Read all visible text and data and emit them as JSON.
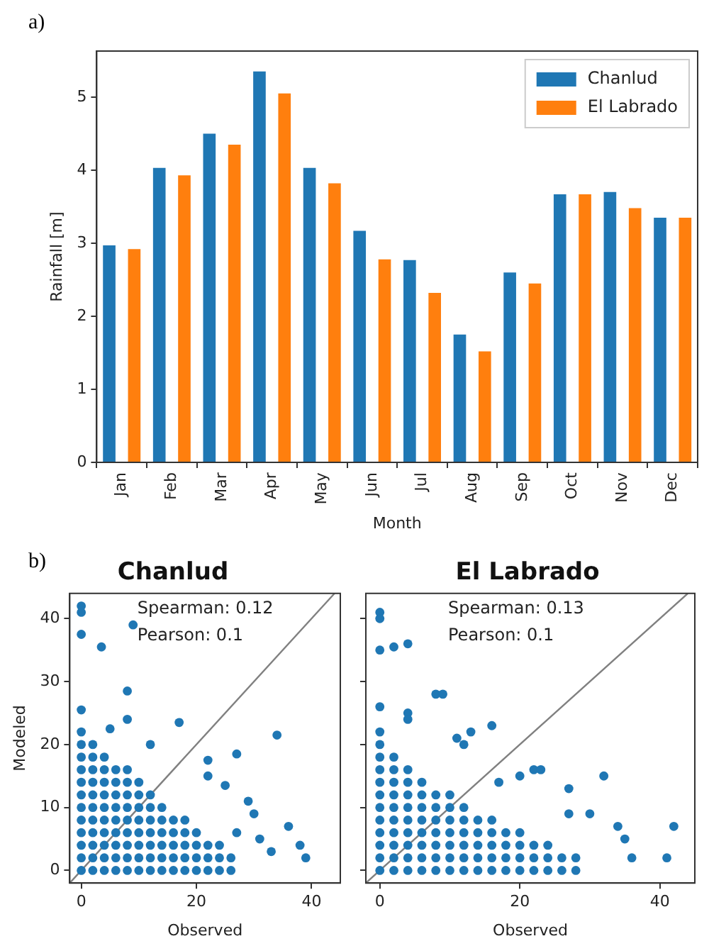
{
  "chart_data": [
    {
      "type": "bar",
      "annotations": [
        "a)"
      ],
      "xlabel": "Month",
      "ylabel": "Rainfall [m]",
      "categories": [
        "Jan",
        "Feb",
        "Mar",
        "Apr",
        "May",
        "Jun",
        "Jul",
        "Aug",
        "Sep",
        "Oct",
        "Nov",
        "Dec"
      ],
      "series": [
        {
          "name": "Chanlud",
          "color": "#1f77b4",
          "values": [
            2.97,
            4.03,
            4.5,
            5.35,
            4.03,
            3.17,
            2.77,
            1.75,
            2.6,
            3.67,
            3.7,
            3.35
          ]
        },
        {
          "name": "El Labrado",
          "color": "#ff7f0e",
          "values": [
            2.92,
            3.93,
            4.35,
            5.05,
            3.82,
            2.78,
            2.32,
            1.52,
            2.45,
            3.67,
            3.48,
            3.35
          ]
        }
      ],
      "ylim": [
        0,
        5.63
      ],
      "yticks": [
        0,
        1,
        2,
        3,
        4,
        5
      ],
      "grid": false,
      "legend": "top right"
    },
    {
      "type": "scatter",
      "title": "Chanlud",
      "annotations": [
        "b)",
        "Spearman: 0.12",
        "Pearson: 0.1"
      ],
      "xlabel": "Observed",
      "ylabel": "Modeled",
      "series": [
        {
          "color": "#1f77b4",
          "marker": "circle",
          "x": [
            0,
            0,
            0,
            0,
            0,
            0,
            0,
            0,
            0,
            0,
            0,
            0,
            2,
            2,
            2,
            2,
            2,
            2,
            2,
            2,
            2,
            2,
            2,
            4,
            4,
            4,
            4,
            4,
            4,
            4,
            4,
            4,
            4,
            6,
            6,
            6,
            6,
            6,
            6,
            6,
            6,
            6,
            8,
            8,
            8,
            8,
            8,
            8,
            8,
            8,
            8,
            10,
            10,
            10,
            10,
            10,
            10,
            10,
            10,
            12,
            12,
            12,
            12,
            12,
            12,
            12,
            14,
            14,
            14,
            14,
            14,
            14,
            16,
            16,
            16,
            16,
            16,
            18,
            18,
            18,
            18,
            18,
            20,
            20,
            20,
            20,
            22,
            22,
            22,
            24,
            24,
            24,
            26,
            26,
            0,
            0,
            0,
            3.5,
            9,
            8,
            0,
            17,
            34,
            27,
            22,
            22,
            25,
            29,
            30,
            36,
            38,
            39,
            31,
            33,
            27,
            12,
            8,
            5
          ],
          "values": [
            0,
            2,
            4,
            6,
            8,
            10,
            12,
            14,
            16,
            18,
            20,
            22,
            0,
            2,
            4,
            6,
            8,
            10,
            12,
            14,
            16,
            18,
            20,
            0,
            2,
            4,
            6,
            8,
            10,
            12,
            14,
            16,
            18,
            0,
            2,
            4,
            6,
            8,
            10,
            12,
            14,
            16,
            0,
            2,
            4,
            6,
            8,
            10,
            12,
            14,
            16,
            0,
            2,
            4,
            6,
            8,
            10,
            12,
            14,
            0,
            2,
            4,
            6,
            8,
            10,
            12,
            0,
            2,
            4,
            6,
            8,
            10,
            0,
            2,
            4,
            6,
            8,
            0,
            2,
            4,
            6,
            8,
            0,
            2,
            4,
            6,
            0,
            2,
            4,
            0,
            2,
            4,
            0,
            2,
            42,
            41,
            37.5,
            35.5,
            39,
            28.5,
            25.5,
            23.5,
            21.5,
            18.5,
            17.5,
            15,
            13.5,
            11,
            9,
            7,
            4,
            2,
            5,
            3,
            6,
            20,
            24,
            22.5
          ]
        },
        {
          "type": "line",
          "marker": "none",
          "color": "#808080",
          "x": [
            -2,
            44
          ],
          "values": [
            -2,
            44
          ]
        }
      ],
      "xlim": [
        -2,
        45
      ],
      "xticks": [
        0,
        20,
        40
      ],
      "ylim": [
        -2,
        44
      ],
      "yticks": [
        0,
        10,
        20,
        30,
        40
      ],
      "grid": false
    },
    {
      "type": "scatter",
      "title": "El Labrado",
      "annotations": [
        "Spearman: 0.13",
        "Pearson: 0.1"
      ],
      "xlabel": "Observed",
      "tick_labels": "x",
      "series": [
        {
          "color": "#1f77b4",
          "marker": "circle",
          "x": [
            0,
            0,
            0,
            0,
            0,
            0,
            0,
            0,
            0,
            0,
            0,
            0,
            2,
            2,
            2,
            2,
            2,
            2,
            2,
            2,
            2,
            2,
            4,
            4,
            4,
            4,
            4,
            4,
            4,
            4,
            4,
            6,
            6,
            6,
            6,
            6,
            6,
            6,
            6,
            8,
            8,
            8,
            8,
            8,
            8,
            8,
            10,
            10,
            10,
            10,
            10,
            10,
            10,
            12,
            12,
            12,
            12,
            12,
            12,
            14,
            14,
            14,
            14,
            14,
            16,
            16,
            16,
            16,
            16,
            18,
            18,
            18,
            18,
            20,
            20,
            20,
            20,
            22,
            22,
            22,
            24,
            24,
            24,
            26,
            26,
            28,
            28,
            0,
            0,
            0,
            2,
            4,
            8,
            9,
            0,
            4,
            4,
            16,
            13,
            12,
            11,
            22,
            23,
            32,
            20,
            27,
            17,
            30,
            34,
            35,
            42,
            41,
            36,
            27
          ],
          "values": [
            0,
            2,
            4,
            6,
            8,
            10,
            12,
            14,
            16,
            18,
            20,
            22,
            0,
            2,
            4,
            6,
            8,
            10,
            12,
            14,
            16,
            18,
            0,
            2,
            4,
            6,
            8,
            10,
            12,
            14,
            16,
            0,
            2,
            4,
            6,
            8,
            10,
            12,
            14,
            0,
            2,
            4,
            6,
            8,
            10,
            12,
            0,
            2,
            4,
            6,
            8,
            10,
            12,
            0,
            2,
            4,
            6,
            8,
            10,
            0,
            2,
            4,
            6,
            8,
            0,
            2,
            4,
            6,
            8,
            0,
            2,
            4,
            6,
            0,
            2,
            4,
            6,
            0,
            2,
            4,
            0,
            2,
            4,
            0,
            2,
            0,
            2,
            41,
            40,
            35,
            35.5,
            36,
            28,
            28,
            26,
            25,
            24,
            23,
            22,
            20,
            21,
            16,
            16,
            15,
            15,
            13,
            14,
            9,
            7,
            5,
            7,
            2,
            2,
            9
          ]
        },
        {
          "type": "line",
          "marker": "none",
          "color": "#808080",
          "x": [
            -2,
            44
          ],
          "values": [
            -2,
            44
          ]
        }
      ],
      "xlim": [
        -2,
        45
      ],
      "xticks": [
        0,
        20,
        40
      ],
      "ylim": [
        -2,
        44
      ],
      "yticks": [
        0,
        10,
        20,
        30,
        40
      ],
      "grid": false
    }
  ]
}
